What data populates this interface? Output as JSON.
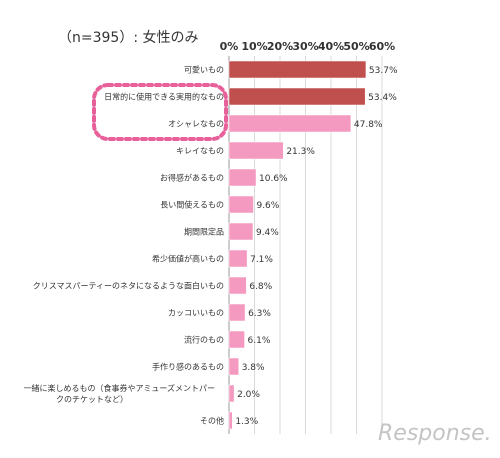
{
  "chart_data": {
    "type": "bar",
    "orientation": "horizontal",
    "title": "（n=395）: 女性のみ",
    "xlim": [
      0,
      60
    ],
    "x_ticks": [
      "0%",
      "10%",
      "20%",
      "30%",
      "40%",
      "50%",
      "60%"
    ],
    "grid": true,
    "categories": [
      "可愛いもの",
      "日常的に使用できる実用的なもの",
      "オシャレなもの",
      "キレイなもの",
      "お得感があるもの",
      "長い間使えるもの",
      "期間限定品",
      "希少価値が高いもの",
      "クリスマスパーティーのネタになるような面白いもの",
      "カッコいいもの",
      "流行のもの",
      "手作り感のあるもの",
      "一緒に楽しめるもの（食事券やアミューズメントパークのチケットなど）",
      "その他"
    ],
    "values": [
      53.7,
      53.4,
      47.8,
      21.3,
      10.6,
      9.6,
      9.4,
      7.1,
      6.8,
      6.3,
      6.1,
      3.8,
      2.0,
      1.3
    ],
    "value_labels": [
      "53.7%",
      "53.4%",
      "47.8%",
      "21.3%",
      "10.6%",
      "9.6%",
      "9.4%",
      "7.1%",
      "6.8%",
      "6.3%",
      "6.1%",
      "3.8%",
      "2.0%",
      "1.3%"
    ],
    "bar_colors": [
      "#c0504d",
      "#c0504d",
      "#f49ac1",
      "#f49ac1",
      "#f49ac1",
      "#f49ac1",
      "#f49ac1",
      "#f49ac1",
      "#f49ac1",
      "#f49ac1",
      "#f49ac1",
      "#f49ac1",
      "#f49ac1",
      "#f49ac1"
    ],
    "highlight": {
      "categories": [
        "日常的に使用できる実用的なもの",
        "オシャレなもの"
      ],
      "style": "dotted-rounded-box",
      "color": "#e8609a"
    }
  },
  "watermark": "Response."
}
